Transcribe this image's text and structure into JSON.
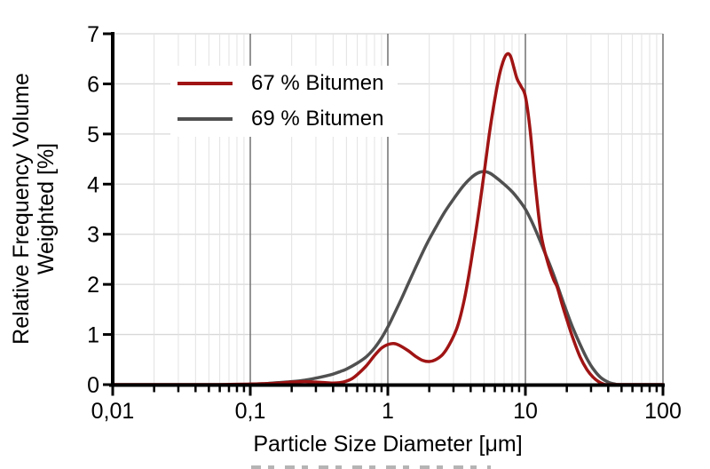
{
  "figure": {
    "background": "#FFFFFF"
  },
  "legend": {
    "items": [
      {
        "label": "67 % Bitumen",
        "color": "#A01414"
      },
      {
        "label": "69 % Bitumen",
        "color": "#505050"
      }
    ]
  },
  "axes": {
    "xlabel": "Particle Size Diameter [μm]",
    "ylabel": "Relative Frequency Volume Weighted [%]",
    "ylabel_lines": [
      "Relative Frequency Volume",
      "Weighted [%]"
    ],
    "x_tick_labels": [
      "0,01",
      "0,1",
      "1",
      "10",
      "100"
    ],
    "y_tick_labels": [
      "0",
      "1",
      "2",
      "3",
      "4",
      "5",
      "6",
      "7"
    ]
  },
  "colors": {
    "axis": "#000000",
    "major_grid": "#717171",
    "minor_grid": "#E2E2E2",
    "horizontal_grid": "#D8D8D8",
    "series_red": "#A01414",
    "series_gray": "#505050"
  },
  "chart_data": {
    "type": "line",
    "title": "",
    "xlabel": "Particle Size Diameter [μm]",
    "ylabel": "Relative Frequency Volume Weighted [%]",
    "x_scale": "log",
    "xlim": [
      0.01,
      100
    ],
    "ylim": [
      0,
      7
    ],
    "x_tick_values": [
      0.01,
      0.1,
      1,
      10,
      100
    ],
    "x_tick_labels": [
      "0,01",
      "0,1",
      "1",
      "10",
      "100"
    ],
    "y_ticks": [
      0,
      1,
      2,
      3,
      4,
      5,
      6,
      7
    ],
    "grid": true,
    "legend_position": "upper-left",
    "series": [
      {
        "name": "67 % Bitumen",
        "color": "#A01414",
        "x": [
          0.01,
          0.05,
          0.1,
          0.13,
          0.16,
          0.2,
          0.25,
          0.3,
          0.35,
          0.4,
          0.45,
          0.5,
          0.55,
          0.6,
          0.7,
          0.8,
          0.9,
          1.0,
          1.1,
          1.2,
          1.4,
          1.6,
          1.8,
          2.0,
          2.2,
          2.5,
          2.8,
          3.2,
          3.6,
          4.0,
          4.5,
          5.0,
          5.5,
          6.0,
          6.5,
          7.0,
          7.4,
          7.8,
          8.2,
          8.7,
          9.3,
          10,
          10.8,
          11.8,
          13,
          14.5,
          16,
          17,
          18.5,
          20,
          22,
          25,
          28,
          31,
          34,
          37,
          40,
          60,
          100
        ],
        "y": [
          0,
          0,
          0.01,
          0.02,
          0.03,
          0.05,
          0.06,
          0.05,
          0.04,
          0.03,
          0.04,
          0.07,
          0.12,
          0.2,
          0.38,
          0.58,
          0.73,
          0.8,
          0.82,
          0.79,
          0.68,
          0.56,
          0.48,
          0.46,
          0.49,
          0.6,
          0.8,
          1.15,
          1.7,
          2.4,
          3.3,
          4.2,
          5.05,
          5.7,
          6.2,
          6.5,
          6.6,
          6.55,
          6.35,
          6.1,
          5.95,
          5.75,
          5.1,
          4.0,
          3.0,
          2.45,
          2.1,
          1.95,
          1.6,
          1.3,
          0.95,
          0.55,
          0.3,
          0.15,
          0.06,
          0.01,
          0,
          0,
          0
        ]
      },
      {
        "name": "69 % Bitumen",
        "color": "#505050",
        "x": [
          0.01,
          0.08,
          0.1,
          0.13,
          0.16,
          0.2,
          0.25,
          0.3,
          0.35,
          0.4,
          0.45,
          0.5,
          0.6,
          0.7,
          0.8,
          0.9,
          1.0,
          1.1,
          1.25,
          1.4,
          1.6,
          1.8,
          2.0,
          2.3,
          2.6,
          3.0,
          3.5,
          4.0,
          4.5,
          5.0,
          5.5,
          6.0,
          7.0,
          8.0,
          9.0,
          10,
          11,
          12,
          13,
          14,
          15,
          16.5,
          18,
          20,
          22,
          25,
          28,
          31,
          35,
          40,
          45,
          50,
          100
        ],
        "y": [
          0,
          0,
          0.01,
          0.02,
          0.04,
          0.06,
          0.09,
          0.13,
          0.17,
          0.21,
          0.26,
          0.31,
          0.43,
          0.56,
          0.73,
          0.93,
          1.15,
          1.38,
          1.7,
          2.0,
          2.35,
          2.65,
          2.9,
          3.2,
          3.45,
          3.7,
          3.95,
          4.12,
          4.22,
          4.25,
          4.22,
          4.15,
          4.0,
          3.85,
          3.68,
          3.5,
          3.28,
          3.05,
          2.82,
          2.6,
          2.4,
          2.1,
          1.8,
          1.45,
          1.15,
          0.8,
          0.52,
          0.32,
          0.15,
          0.05,
          0.01,
          0,
          0
        ]
      }
    ]
  }
}
